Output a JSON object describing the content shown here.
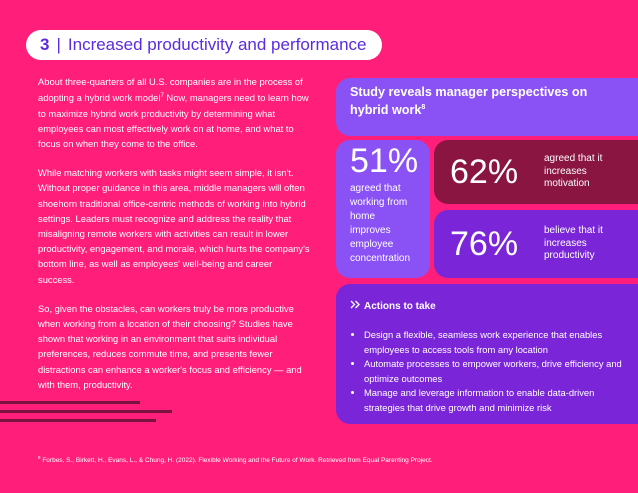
{
  "section": {
    "number": "3",
    "separator": "|",
    "title": "Increased productivity and performance"
  },
  "body": {
    "p1_part1": "About three-quarters of all U.S. companies are in the process of adopting a hybrid work model",
    "p1_ref": "7",
    "p1_part2": " Now, managers need to learn how to maximize hybrid work productivity by determining what employees can most effectively work on at home, and what to focus on when they come to the office.",
    "p2": "While matching workers with tasks might seem simple, it isn't. Without proper guidance in this area, middle managers will often shoehorn traditional office-centric methods of working into hybrid settings. Leaders must recognize and address the reality that misaligning remote workers with activities can result in lower productivity, engagement, and morale, which hurts the company's bottom line, as well as employees' well-being and career success.",
    "p3": "So, given the obstacles, can workers truly be more productive when working from a location of their choosing? Studies have shown that working in an environment that suits individual preferences, reduces commute time, and presents fewer distractions can enhance a worker's focus and efficiency — and with them, productivity."
  },
  "study": {
    "heading": "Study reveals manager perspectives on hybrid work",
    "heading_ref": "8",
    "stats": [
      {
        "value": "51%",
        "label": "agreed that working from home improves employee concentration"
      },
      {
        "value": "62%",
        "label": "agreed that it increases motivation"
      },
      {
        "value": "76%",
        "label": "believe that it increases productivity"
      }
    ]
  },
  "actions": {
    "icon": "double-chevron-right-icon",
    "heading": "Actions to take",
    "items": [
      "Design a flexible, seamless work experience that enables employees to access tools from any location",
      "Automate processes to empower workers, drive efficiency and optimize outcomes",
      "Manage and leverage information to enable data-driven strategies that drive growth and minimize risk"
    ]
  },
  "footnote": {
    "ref": "8",
    "text": "Forbes, S., Birkett, H., Evans, L., & Chung, H. (2022). Flexible Working and the Future of Work. Retrieved from Equal Parenting Project."
  },
  "colors": {
    "background": "#ff1f7a",
    "title_text": "#5b2be0",
    "card_lavender": "#8a52f5",
    "card_maroon": "#8a1540",
    "card_purple": "#7a26d8",
    "deco_lines": "#7a1240"
  }
}
